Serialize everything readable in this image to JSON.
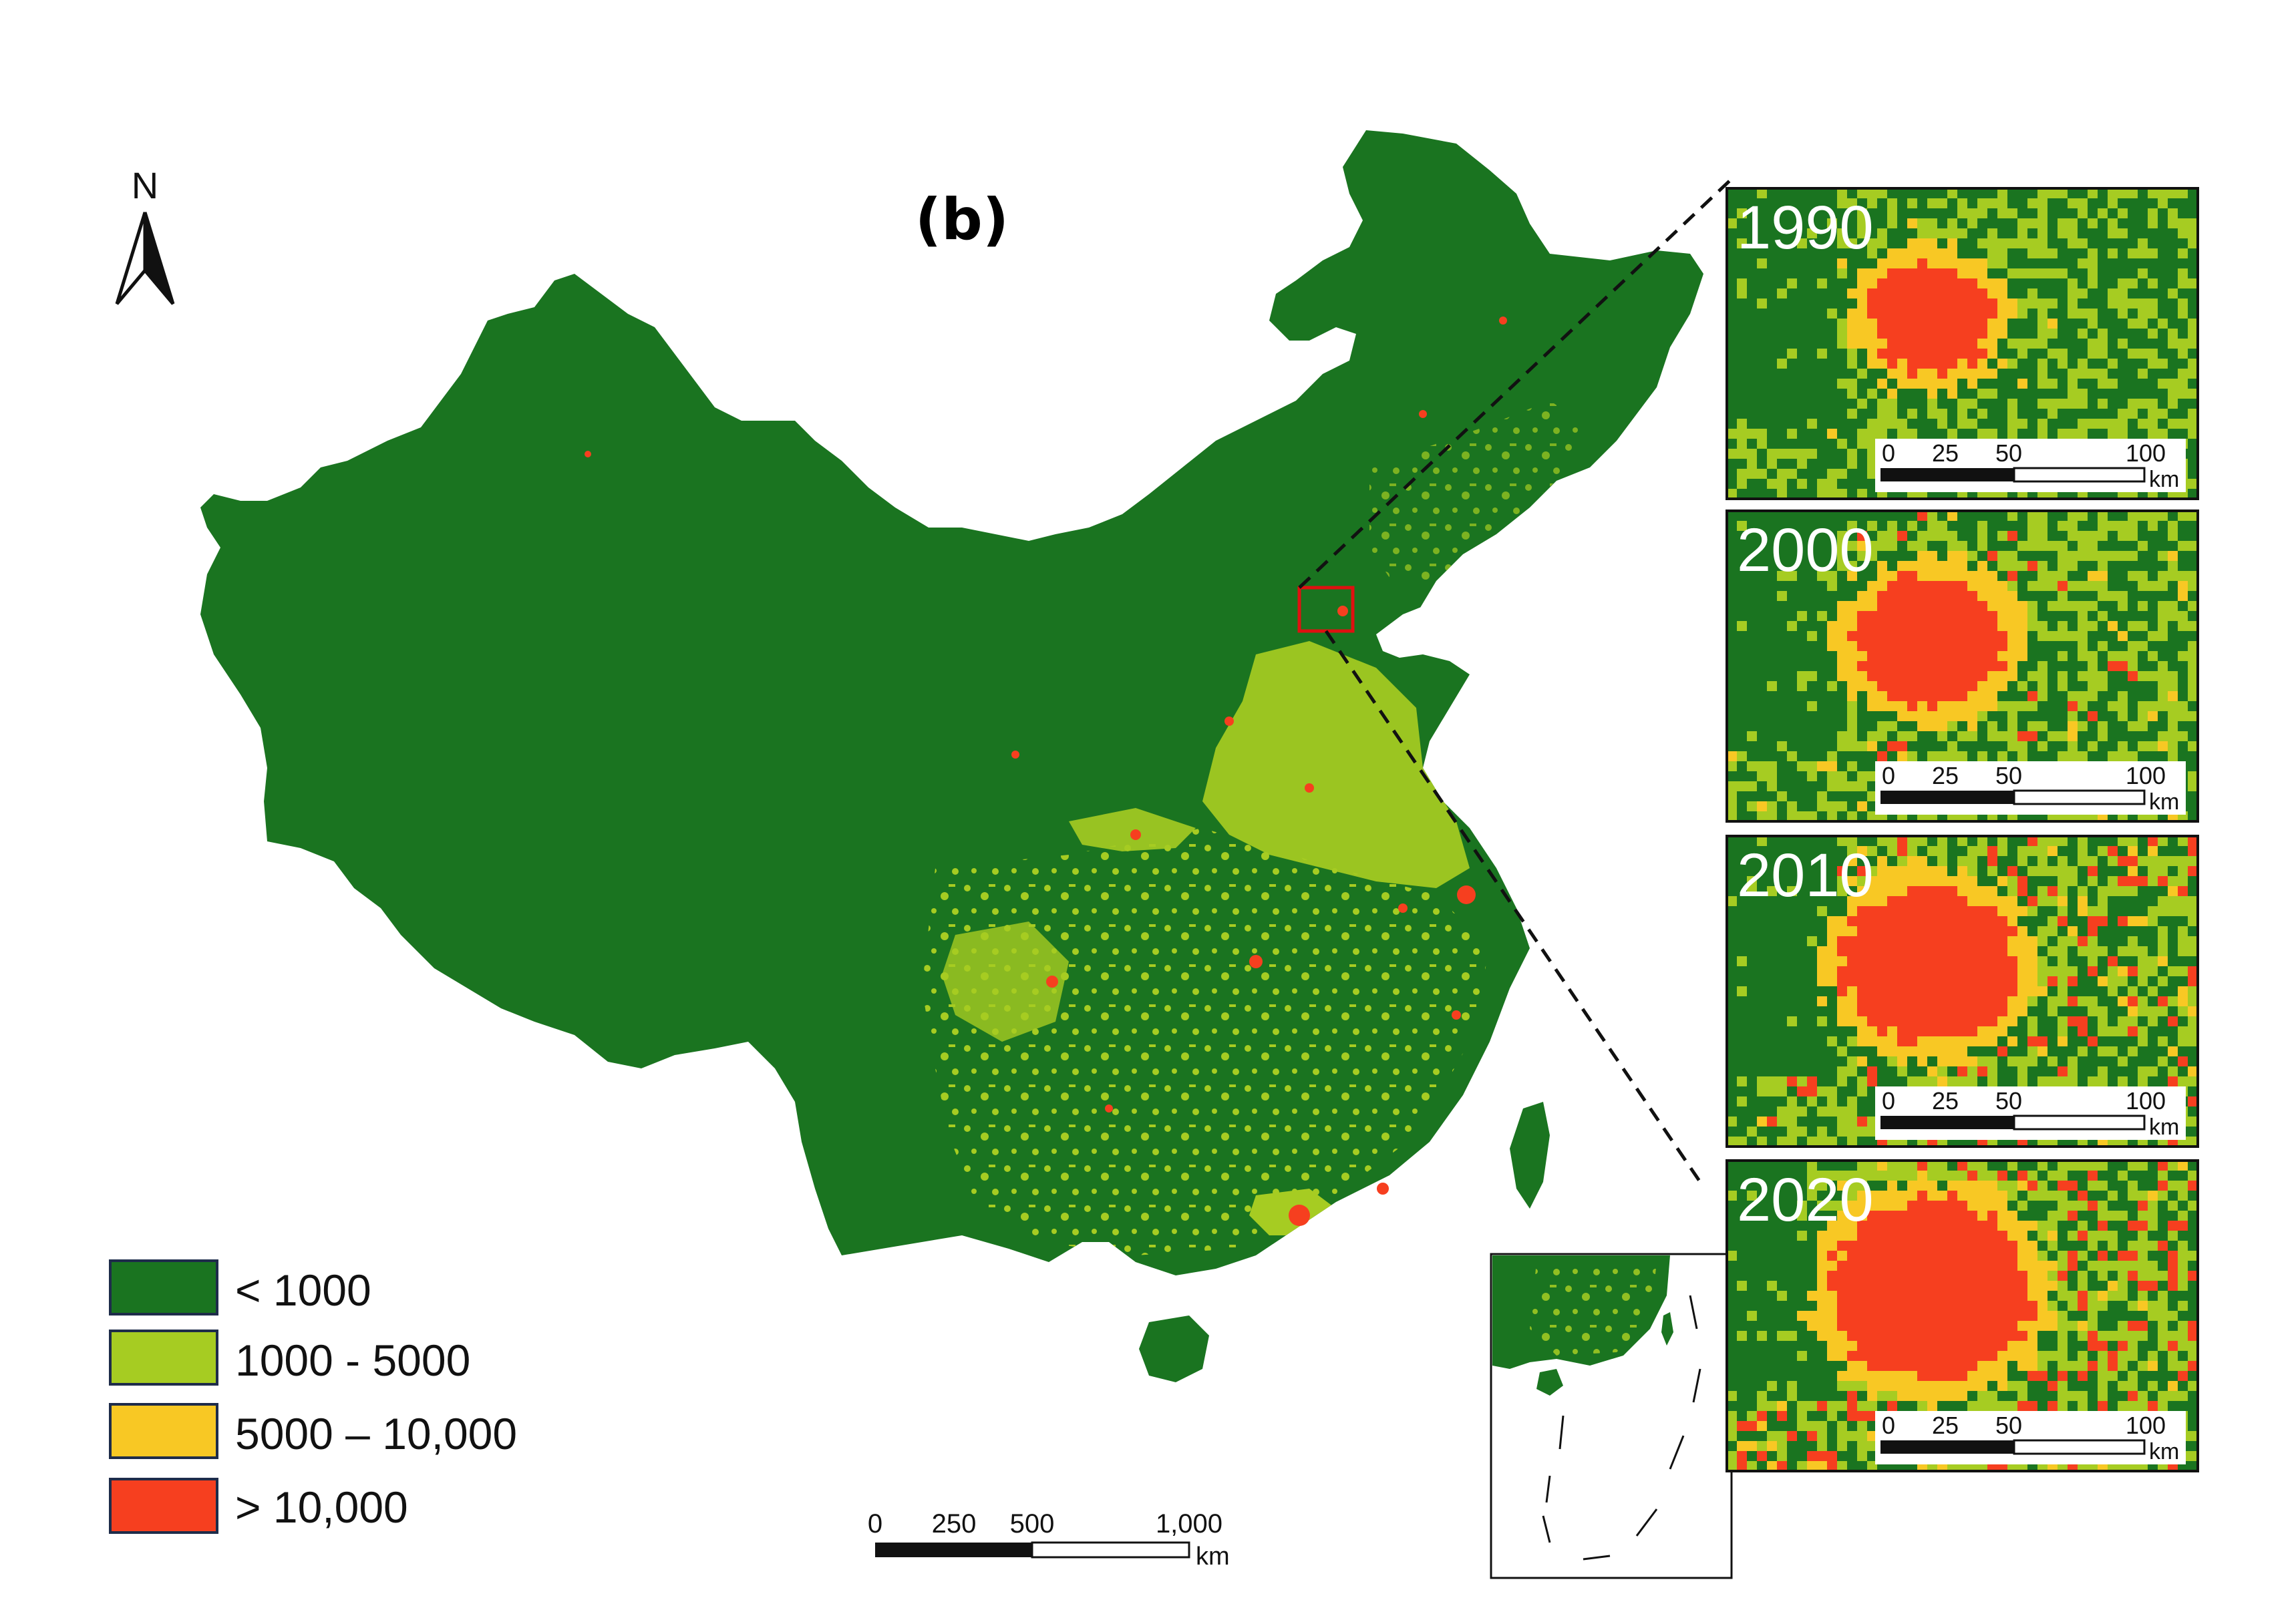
{
  "figure": {
    "panel_label": "(b)",
    "north_label": "N"
  },
  "colors": {
    "class_1": "#1a7420",
    "class_2": "#a6cc22",
    "class_3": "#f8c824",
    "class_4": "#f63f1f",
    "zoom_box": "#e01010"
  },
  "legend": {
    "items": [
      {
        "label": "< 1000",
        "color": "#1a7420"
      },
      {
        "label": "1000 - 5000",
        "color": "#a6cc22"
      },
      {
        "label": "5000 – 10,000",
        "color": "#f8c824"
      },
      {
        "label": "> 10,000",
        "color": "#f63f1f"
      }
    ]
  },
  "main_scalebar": {
    "ticks": [
      "0",
      "250",
      "500",
      "1,000"
    ],
    "unit": "km"
  },
  "insets": [
    {
      "year": "1990",
      "urban_level": 1,
      "ticks": [
        "0",
        "25",
        "50",
        "100"
      ],
      "unit": "km"
    },
    {
      "year": "2000",
      "urban_level": 2,
      "ticks": [
        "0",
        "25",
        "50",
        "100"
      ],
      "unit": "km"
    },
    {
      "year": "2010",
      "urban_level": 3,
      "ticks": [
        "0",
        "25",
        "50",
        "100"
      ],
      "unit": "km"
    },
    {
      "year": "2020",
      "urban_level": 4,
      "ticks": [
        "0",
        "25",
        "50",
        "100"
      ],
      "unit": "km"
    }
  ]
}
